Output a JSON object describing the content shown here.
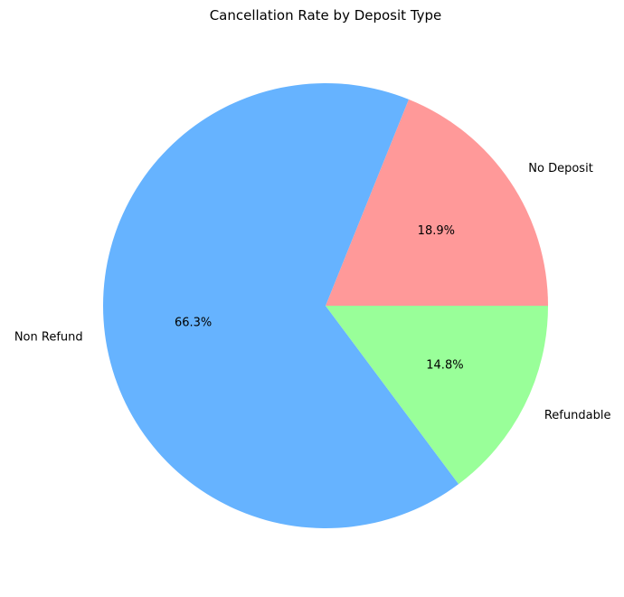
{
  "chart_data": {
    "type": "pie",
    "title": "Cancellation Rate by Deposit Type",
    "start_angle": 0,
    "direction": "counterclockwise",
    "slices": [
      {
        "label": "No Deposit",
        "value": 18.9,
        "pct_label": "18.9%",
        "color": "#ff9999"
      },
      {
        "label": "Non Refund",
        "value": 66.3,
        "pct_label": "66.3%",
        "color": "#66b3ff"
      },
      {
        "label": "Refundable",
        "value": 14.8,
        "pct_label": "14.8%",
        "color": "#99ff99"
      }
    ]
  }
}
